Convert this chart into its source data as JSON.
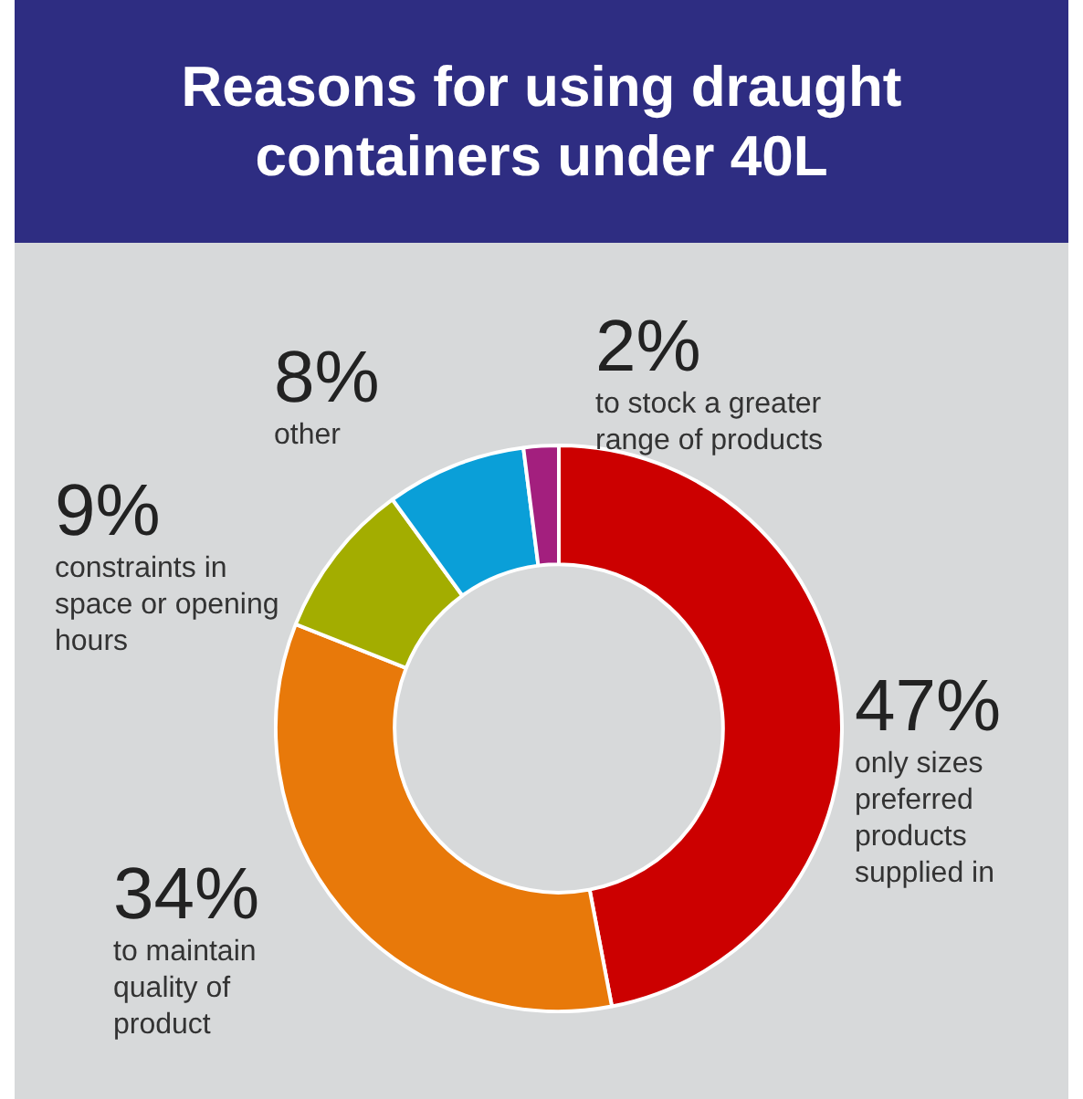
{
  "chart_data": {
    "type": "donut",
    "title": "Reasons for using draught containers under 40L",
    "categories": [
      "only sizes preferred products supplied in",
      "to maintain quality of product",
      "constraints in space or opening hours",
      "other",
      "to stock a greater range of products"
    ],
    "values": [
      47,
      34,
      9,
      8,
      2
    ],
    "value_labels": [
      "47%",
      "34%",
      "9%",
      "8%",
      "2%"
    ],
    "colors": [
      "#cc0000",
      "#e8790a",
      "#a3ad00",
      "#0a9fd8",
      "#a31f7e"
    ],
    "legend": false
  }
}
